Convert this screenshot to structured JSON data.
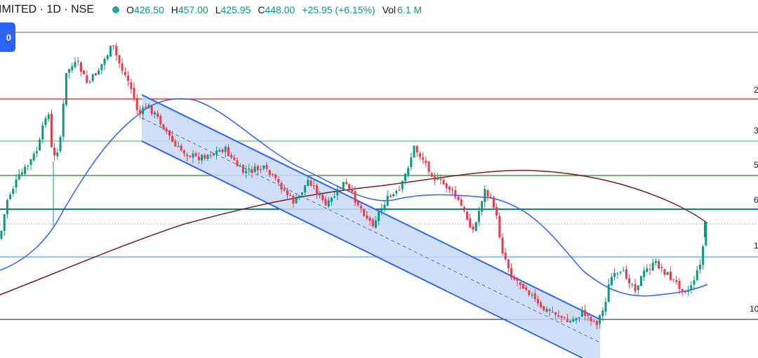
{
  "header": {
    "symbol": "IMITED · 1D · NSE",
    "open_label": "O",
    "open_value": "426.50",
    "high_label": "H",
    "high_value": "457.00",
    "low_label": "L",
    "low_value": "425.95",
    "close_label": "C",
    "close_value": "448.00",
    "change": "+25.95 (+6.15%)",
    "vol_label": "Vol",
    "vol_value": "6.1 M",
    "status": "market-open"
  },
  "badge": {
    "text": "0"
  },
  "colors": {
    "up": "#089981",
    "down": "#f23645",
    "channel_line": "#2962ff",
    "channel_fill": "#c9d8f7",
    "ma_short": "#2962ff",
    "ma_long": "#7b1b1b"
  },
  "level_labels": [
    "2",
    "3",
    "5",
    "6",
    "1",
    "10"
  ],
  "chart_data": {
    "type": "candlestick",
    "interval": "1D",
    "exchange": "NSE",
    "last_ohlc": {
      "open": 426.5,
      "high": 457.0,
      "low": 425.95,
      "close": 448.0
    },
    "change": 25.95,
    "change_pct": 6.15,
    "volume": "6.1 M",
    "overlays": [
      "descending parallel channel",
      "short moving average",
      "long moving average",
      "horizontal levels"
    ]
  }
}
